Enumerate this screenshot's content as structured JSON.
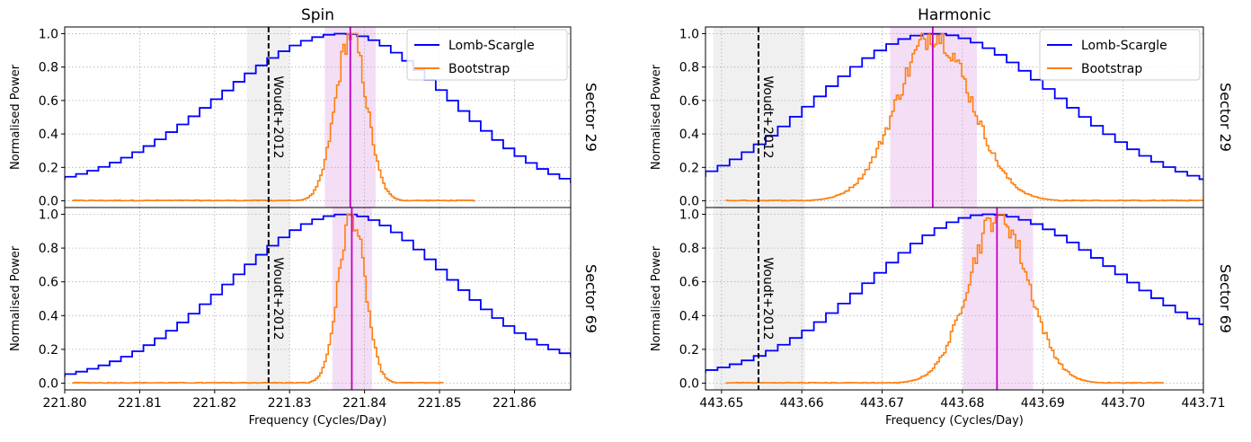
{
  "chart_data": [
    {
      "type": "line",
      "title": "Spin",
      "xlabel": "Frequency (Cycles/Day)",
      "ylabel": "Normalised Power",
      "xlim": [
        221.8,
        221.8675
      ],
      "xticks": [
        221.8,
        221.81,
        221.82,
        221.83,
        221.84,
        221.85,
        221.86
      ],
      "xtick_labels": [
        "221.80",
        "221.81",
        "221.82",
        "221.83",
        "221.84",
        "221.85",
        "221.86"
      ],
      "ylim": [
        -0.04,
        1.04
      ],
      "yticks": [
        0.0,
        0.2,
        0.4,
        0.6,
        0.8,
        1.0
      ],
      "ytick_labels": [
        "0.0",
        "0.2",
        "0.4",
        "0.6",
        "0.8",
        "1.0"
      ],
      "grid": true,
      "legend": {
        "placement": "top-right",
        "entries": [
          "Lomb-Scargle",
          "Bootstrap"
        ]
      },
      "reference_line": {
        "x": 221.8272,
        "label": "Woudt+2012",
        "shade": [
          221.8243,
          221.83
        ]
      },
      "panels": [
        {
          "sector_label": "Sector 29",
          "series": [
            {
              "name": "Lomb-Scargle",
              "color": "#0000ff",
              "peak": 221.8372,
              "left_width": 0.0162,
              "right_width": 0.0142,
              "step": 0.0015,
              "floor": 0.07,
              "end_value": 0.02
            },
            {
              "name": "Bootstrap",
              "color": "#ff7f0e",
              "x_start": 221.801,
              "x_end": 221.8547,
              "peak": 221.8382,
              "width": 0.00205,
              "step": 0.00028
            }
          ],
          "best_frequency": 221.8381,
          "interval": [
            221.8347,
            221.8415
          ]
        },
        {
          "sector_label": "Sector 69",
          "series": [
            {
              "name": "Lomb-Scargle",
              "color": "#0000ff",
              "peak": 221.8375,
              "left_width": 0.0152,
              "right_width": 0.0135,
              "step": 0.0015,
              "floor": 0.0,
              "end_value": 0.09
            },
            {
              "name": "Bootstrap",
              "color": "#ff7f0e",
              "x_start": 221.801,
              "x_end": 221.8505,
              "peak": 221.8383,
              "width": 0.00175,
              "step": 0.00028
            }
          ],
          "best_frequency": 221.8383,
          "interval": [
            221.8357,
            221.841
          ]
        }
      ]
    },
    {
      "type": "line",
      "title": "Harmonic",
      "xlabel": "Frequency (Cycles/Day)",
      "ylabel": "Normalised Power",
      "xlim": [
        443.648,
        443.71
      ],
      "xticks": [
        443.65,
        443.66,
        443.67,
        443.68,
        443.69,
        443.7,
        443.71
      ],
      "xtick_labels": [
        "443.65",
        "443.66",
        "443.67",
        "443.68",
        "443.69",
        "443.70",
        "443.71"
      ],
      "ylim": [
        -0.04,
        1.04
      ],
      "yticks": [
        0.0,
        0.2,
        0.4,
        0.6,
        0.8,
        1.0
      ],
      "ytick_labels": [
        "0.0",
        "0.2",
        "0.4",
        "0.6",
        "0.8",
        "1.0"
      ],
      "grid": true,
      "legend": {
        "placement": "top-right",
        "entries": [
          "Lomb-Scargle",
          "Bootstrap"
        ]
      },
      "reference_line": {
        "x": 443.6546,
        "label": "Woudt+2012",
        "shade": [
          443.649,
          443.6604
        ]
      },
      "panels": [
        {
          "sector_label": "Sector 29",
          "series": [
            {
              "name": "Lomb-Scargle",
              "color": "#0000ff",
              "peak": 443.6765,
              "left_width": 0.0145,
              "right_width": 0.0155,
              "step": 0.0015,
              "floor": 0.02,
              "end_value": 0.04
            },
            {
              "name": "Bootstrap",
              "color": "#ff7f0e",
              "x_start": 443.6505,
              "x_end": 443.7105,
              "peak": 443.6765,
              "width": 0.0046,
              "step": 0.00028
            }
          ],
          "best_frequency": 443.6763,
          "interval": [
            443.671,
            443.6818
          ]
        },
        {
          "sector_label": "Sector 69",
          "series": [
            {
              "name": "Lomb-Scargle",
              "color": "#0000ff",
              "peak": 443.6833,
              "left_width": 0.0145,
              "right_width": 0.0158,
              "step": 0.0015,
              "floor": 0.02,
              "end_value": 0.15
            },
            {
              "name": "Bootstrap",
              "color": "#ff7f0e",
              "x_start": 443.6505,
              "x_end": 443.705,
              "peak": 443.6845,
              "width": 0.0037,
              "step": 0.00028
            }
          ],
          "best_frequency": 443.6843,
          "interval": [
            443.6801,
            443.6888
          ]
        }
      ]
    }
  ]
}
